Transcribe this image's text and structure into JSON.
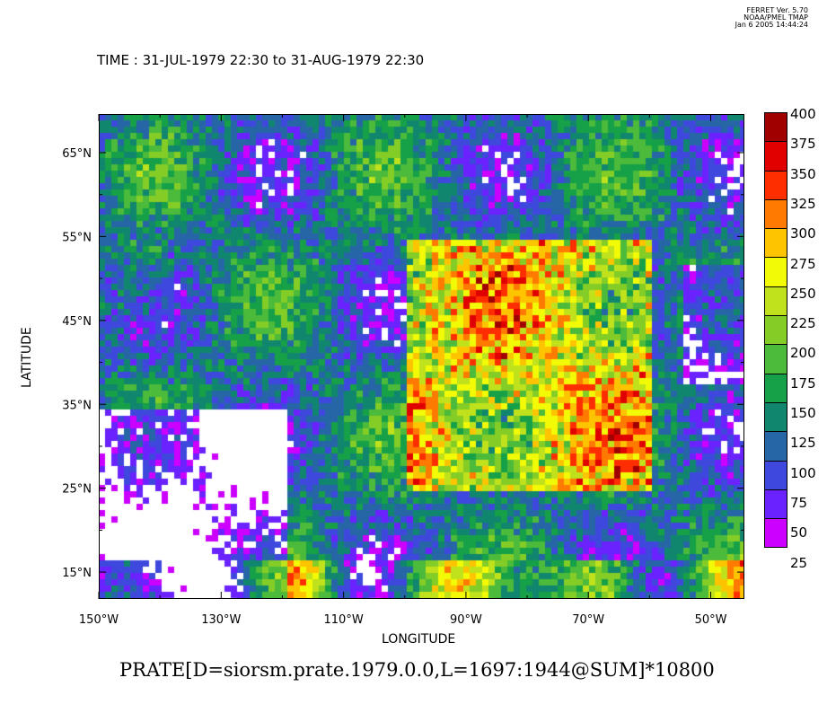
{
  "header": {
    "program": "FERRET Ver. 5.70",
    "org": "NOAA/PMEL TMAP",
    "timestamp": "Jan  6 2005 14:44:24",
    "time_range": "TIME : 31-JUL-1979 22:30 to 31-AUG-1979 22:30"
  },
  "map": {
    "region": {
      "lon_min": -150,
      "lon_max": -44.5,
      "lat_min": 11.8,
      "lat_max": 69.6
    },
    "xlabel": "LONGITUDE",
    "ylabel": "LATITUDE",
    "lon_ticks": [
      {
        "value": -150,
        "label": "150°W"
      },
      {
        "value": -130,
        "label": "130°W"
      },
      {
        "value": -110,
        "label": "110°W"
      },
      {
        "value": -90,
        "label": "90°W"
      },
      {
        "value": -70,
        "label": "70°W"
      },
      {
        "value": -50,
        "label": "50°W"
      }
    ],
    "lat_ticks": [
      {
        "value": 15,
        "label": "15°N"
      },
      {
        "value": 25,
        "label": "25°N"
      },
      {
        "value": 35,
        "label": "35°N"
      },
      {
        "value": 45,
        "label": "45°N"
      },
      {
        "value": 55,
        "label": "55°N"
      },
      {
        "value": 65,
        "label": "65°N"
      }
    ],
    "missing_color": "#ffffff"
  },
  "colorbar": {
    "levels": [
      "25",
      "50",
      "75",
      "100",
      "125",
      "150",
      "175",
      "200",
      "225",
      "250",
      "275",
      "300",
      "325",
      "350",
      "375",
      "400"
    ],
    "colors": [
      "#cc00ff",
      "#6a22ff",
      "#3e48dd",
      "#2666a6",
      "#11866e",
      "#16a048",
      "#4cba3a",
      "#84cc26",
      "#c0e21c",
      "#f2fa06",
      "#ffc400",
      "#ff7a00",
      "#ff2e00",
      "#e00000",
      "#a00000"
    ]
  },
  "footer": {
    "variable": "PRATE[D=siorsm.prate.1979.0.0,L=1697:1944@SUM]*10800"
  }
}
